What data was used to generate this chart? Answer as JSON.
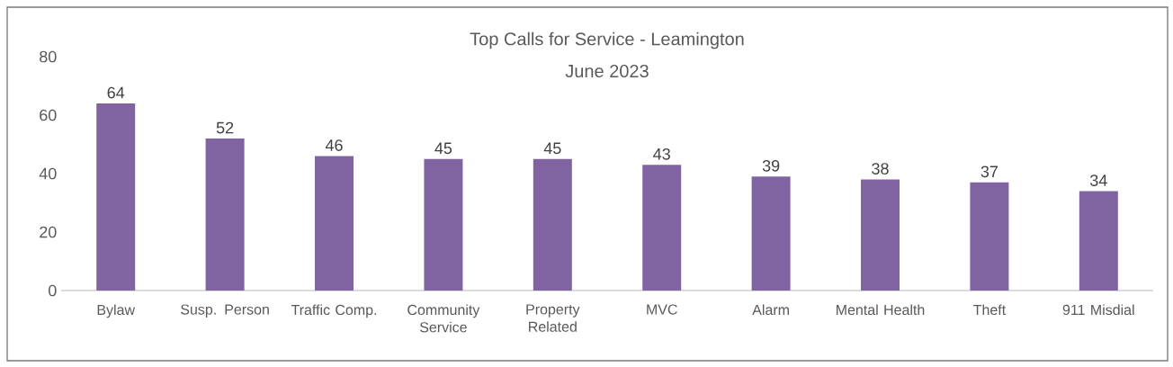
{
  "chart_data": {
    "type": "bar",
    "title": "Top Calls for Service - Leamington",
    "subtitle": "June 2023",
    "categories": [
      "Bylaw",
      "Susp. Person",
      "Traffic Comp.",
      "Community Service",
      "Property Related",
      "MVC",
      "Alarm",
      "Mental Health",
      "Theft",
      "911 Misdial"
    ],
    "values": [
      64,
      52,
      46,
      45,
      45,
      43,
      39,
      38,
      37,
      34
    ],
    "color": "#8064a2",
    "ylim": [
      0,
      80
    ],
    "yticks": [
      0,
      20,
      40,
      60,
      80
    ],
    "data_labels": true
  }
}
